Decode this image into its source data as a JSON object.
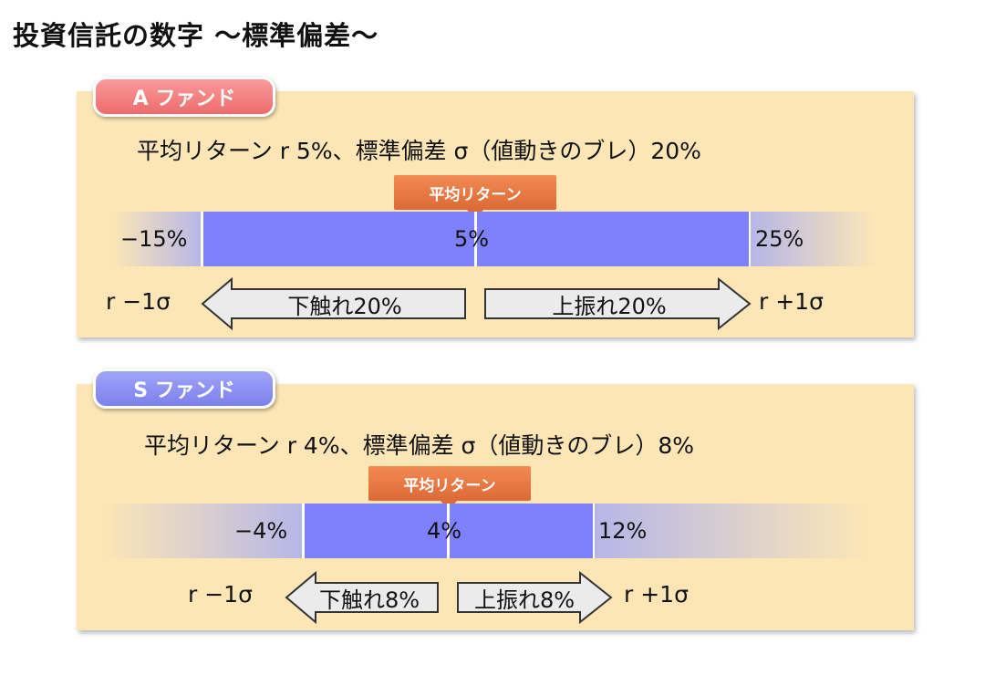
{
  "title": "投資信託の数字 〜標準偏差〜",
  "fund_a": {
    "tab": "A ファンド",
    "description": "平均リターン r 5%、標準偏差 σ（値動きのブレ）20%",
    "callout": "平均リターン",
    "low": "−15%",
    "mean": "5%",
    "high": "25%",
    "minus_sigma": "r −1σ",
    "plus_sigma": "r +1σ",
    "down_arrow": "下触れ20%",
    "up_arrow": "上振れ20%"
  },
  "fund_s": {
    "tab": "S ファンド",
    "description": "平均リターン r 4%、標準偏差 σ（値動きのブレ）8%",
    "callout": "平均リターン",
    "low": "−4%",
    "mean": "4%",
    "high": "12%",
    "minus_sigma": "r −1σ",
    "plus_sigma": "r +1σ",
    "down_arrow": "下触れ8%",
    "up_arrow": "上振れ8%"
  },
  "colors": {
    "panel": "#fce6b6",
    "bar": "#7f80fb",
    "callout": "#dc6a36",
    "tab_a": "#ef6b6b",
    "tab_s": "#7c80ee"
  }
}
